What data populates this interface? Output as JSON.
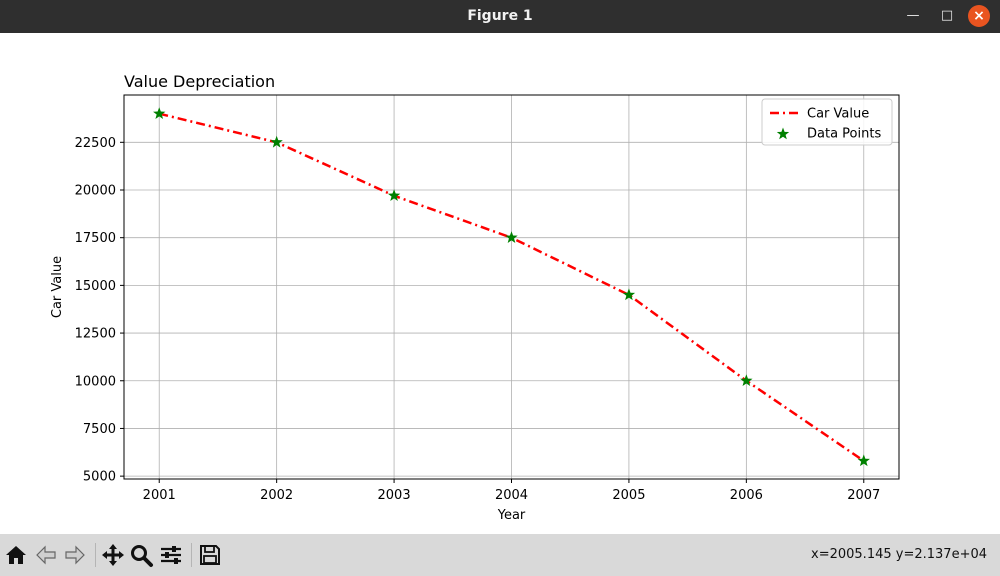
{
  "window": {
    "title": "Figure 1"
  },
  "toolbar": {
    "buttons": [
      "home-icon",
      "back-arrow-icon",
      "forward-arrow-icon",
      "pan-icon",
      "zoom-icon",
      "configure-subplots-icon",
      "save-icon"
    ],
    "coords_text": "x=2005.145 y=2.137e+04"
  },
  "chart_data": {
    "type": "line",
    "title": "Value Depreciation",
    "xlabel": "Year",
    "ylabel": "Car Value",
    "x": [
      2001,
      2002,
      2003,
      2004,
      2005,
      2006,
      2007
    ],
    "series": [
      {
        "name": "Car Value",
        "style": "dash-dot line",
        "color": "#ff0000",
        "values": [
          24000,
          22500,
          19700,
          17500,
          14500,
          10000,
          5800
        ]
      },
      {
        "name": "Data Points",
        "style": "star markers",
        "color": "#008000",
        "values": [
          24000,
          22500,
          19700,
          17500,
          14500,
          10000,
          5800
        ]
      }
    ],
    "xticks": [
      "2001",
      "2002",
      "2003",
      "2004",
      "2005",
      "2006",
      "2007"
    ],
    "yticks": [
      "5000",
      "7500",
      "10000",
      "12500",
      "15000",
      "17500",
      "20000",
      "22500"
    ],
    "xlim": [
      2000.7,
      2007.3
    ],
    "ylim": [
      4850,
      24980
    ],
    "grid": true,
    "legend": "top-right"
  }
}
